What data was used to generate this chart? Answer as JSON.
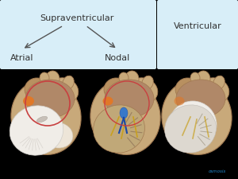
{
  "bg_color": "#ffffff",
  "light_blue": "#d8eef8",
  "black_bg": "#000000",
  "title_supra": "Supraventricular",
  "label_atrial": "Atrial",
  "label_nodal": "Nodal",
  "title_ventricular": "Ventricular",
  "tan": "#c8a97a",
  "tan_dark": "#a07850",
  "tan_mid": "#b89060",
  "tan_light": "#d8bc98",
  "brown_dark": "#7a5535",
  "orange": "#e07828",
  "blue": "#3878c8",
  "blue_dark": "#1848a8",
  "yellow": "#c8a020",
  "white_vent": "#f0ede8",
  "white_vent2": "#e8e5e0",
  "red_line": "#c84040",
  "text_color": "#333333",
  "watermark_blue": "#2288cc",
  "watermark_orange": "#d06820"
}
